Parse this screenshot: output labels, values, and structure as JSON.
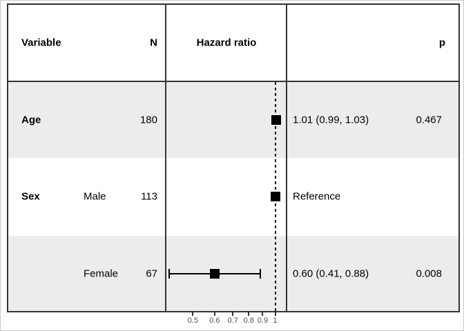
{
  "header": {
    "variable": "Variable",
    "n": "N",
    "hazard_ratio": "Hazard ratio",
    "p": "p"
  },
  "table": {
    "rows": [
      {
        "variable": "Age",
        "level": "",
        "n": "180",
        "estimate": "1.01 (0.99, 1.03)",
        "p": "0.467"
      },
      {
        "variable": "Sex",
        "level": "Male",
        "n": "113",
        "estimate": "Reference",
        "p": ""
      },
      {
        "variable": "",
        "level": "Female",
        "n": "67",
        "estimate": "0.60 (0.41, 0.88)",
        "p": "0.008"
      }
    ]
  },
  "chart_data": {
    "type": "scatter",
    "subtype": "forest-plot",
    "title": "",
    "xlabel": "",
    "ylabel": "",
    "scale": "log10",
    "xlim": [
      0.4,
      1.1
    ],
    "x_ticks": [
      0.5,
      0.6,
      0.7,
      0.8,
      0.9,
      1
    ],
    "x_tick_labels": [
      "0.5",
      "0.6",
      "0.7",
      "0.8",
      "0.9",
      "1"
    ],
    "reference_line": 1,
    "grid": false,
    "rows": [
      {
        "label": "Age",
        "n": 180,
        "hr": 1.01,
        "ci_low": 0.99,
        "ci_high": 1.03,
        "p": 0.467,
        "reference": false
      },
      {
        "label": "Sex: Male",
        "n": 113,
        "hr": 1.0,
        "ci_low": null,
        "ci_high": null,
        "p": null,
        "reference": true
      },
      {
        "label": "Sex: Female",
        "n": 67,
        "hr": 0.6,
        "ci_low": 0.41,
        "ci_high": 0.88,
        "p": 0.008,
        "reference": false
      }
    ]
  },
  "colors": {
    "band": "#ececec",
    "border": "#333333",
    "marker": "#000000",
    "text": "#000000",
    "tick_label": "#4d4d4d"
  }
}
